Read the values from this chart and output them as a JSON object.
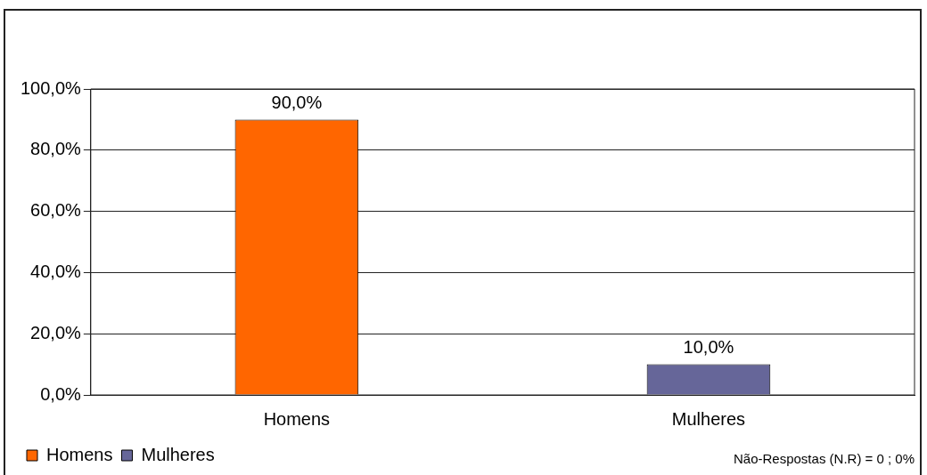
{
  "chart_data": {
    "type": "bar",
    "categories": [
      "Homens",
      "Mulheres"
    ],
    "series": [
      {
        "name": "Homens",
        "color": "#ff6600",
        "values": [
          90,
          null
        ],
        "value_labels": [
          "90,0%",
          null
        ]
      },
      {
        "name": "Mulheres",
        "color": "#666699",
        "values": [
          null,
          10
        ],
        "value_labels": [
          null,
          "10,0%"
        ]
      }
    ],
    "ylim": [
      0,
      100
    ],
    "yticks": [
      {
        "value": 0,
        "label": "0,0%"
      },
      {
        "value": 20,
        "label": "20,0%"
      },
      {
        "value": 40,
        "label": "40,0%"
      },
      {
        "value": 60,
        "label": "60,0%"
      },
      {
        "value": 80,
        "label": "80,0%"
      },
      {
        "value": 100,
        "label": "100,0%"
      }
    ],
    "grid": "y",
    "legend": "bottom left",
    "annotations": [
      "Não-Respostas (N.R) = 0 ; 0%"
    ]
  }
}
